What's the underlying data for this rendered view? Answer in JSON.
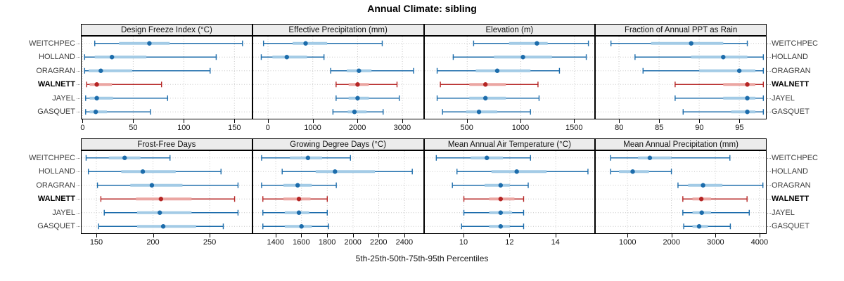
{
  "title": "Annual Climate: sibling",
  "caption": "5th-25th-50th-75th-95th Percentiles",
  "percentile_labels": [
    "5th",
    "25th",
    "50th",
    "75th",
    "95th"
  ],
  "stations": [
    {
      "name": "WEITCHPEC",
      "highlight": false
    },
    {
      "name": "HOLLAND",
      "highlight": false
    },
    {
      "name": "ORAGRAN",
      "highlight": false
    },
    {
      "name": "WALNETT",
      "highlight": true
    },
    {
      "name": "JAYEL",
      "highlight": false
    },
    {
      "name": "GASQUET",
      "highlight": false
    }
  ],
  "colors": {
    "blue": "#1c6cab",
    "blue_band": "#a3cbe6",
    "red": "#b52524",
    "red_band": "#eba6a2",
    "header_bg": "#ececec",
    "grid": "#c8c8c8"
  },
  "chart_data": [
    {
      "type": "dotplot",
      "title": "Design Freeze Index (°C)",
      "xlim": [
        -1,
        167
      ],
      "ticks": [
        0,
        50,
        100,
        150
      ],
      "values": {
        "WEITCHPEC": [
          12,
          36,
          66,
          86,
          158
        ],
        "HOLLAND": [
          2,
          12,
          29,
          63,
          132
        ],
        "ORAGRAN": [
          2,
          6,
          18,
          49,
          126
        ],
        "WALNETT": [
          4,
          7,
          14,
          29,
          78
        ],
        "JAYEL": [
          3,
          7,
          14,
          30,
          84
        ],
        "GASQUET": [
          3,
          7,
          13,
          24,
          67
        ]
      }
    },
    {
      "type": "dotplot",
      "title": "Effective Precipitation (mm)",
      "xlim": [
        -330,
        3465
      ],
      "ticks": [
        0,
        1000,
        2000,
        3000
      ],
      "values": {
        "WEITCHPEC": [
          -100,
          550,
          840,
          1320,
          2550
        ],
        "HOLLAND": [
          -150,
          100,
          420,
          870,
          1250
        ],
        "ORAGRAN": [
          1400,
          1760,
          2030,
          2310,
          3250
        ],
        "WALNETT": [
          1520,
          1800,
          2000,
          2250,
          2880
        ],
        "JAYEL": [
          1520,
          1800,
          2000,
          2250,
          2930
        ],
        "GASQUET": [
          1450,
          1780,
          1930,
          2200,
          2570
        ]
      }
    },
    {
      "type": "dotplot",
      "title": "Elevation (m)",
      "xlim": [
        105,
        1690
      ],
      "ticks": [
        500,
        1000,
        1500
      ],
      "values": {
        "WEITCHPEC": [
          560,
          890,
          1150,
          1250,
          1630
        ],
        "HOLLAND": [
          370,
          750,
          1020,
          1290,
          1610
        ],
        "ORAGRAN": [
          220,
          580,
          780,
          1090,
          1360
        ],
        "WALNETT": [
          250,
          520,
          670,
          860,
          1160
        ],
        "JAYEL": [
          220,
          520,
          670,
          860,
          1170
        ],
        "GASQUET": [
          270,
          490,
          610,
          780,
          1090
        ]
      }
    },
    {
      "type": "dotplot",
      "title": "Fraction of Annual PPT as Rain",
      "xlim": [
        77.1,
        98.3
      ],
      "ticks": [
        80,
        85,
        90,
        95
      ],
      "values": {
        "WEITCHPEC": [
          79,
          84,
          89,
          93,
          96
        ],
        "HOLLAND": [
          82,
          89,
          93,
          96,
          98
        ],
        "ORAGRAN": [
          83,
          90,
          95,
          97,
          98
        ],
        "WALNETT": [
          87,
          93,
          96,
          97,
          98
        ],
        "JAYEL": [
          87,
          93,
          96,
          97,
          98
        ],
        "GASQUET": [
          88,
          94,
          96,
          97,
          98
        ]
      }
    },
    {
      "type": "dotplot",
      "title": "Frost-Free Days",
      "xlim": [
        137,
        287
      ],
      "ticks": [
        150,
        200,
        250
      ],
      "values": {
        "WEITCHPEC": [
          141,
          161,
          175,
          189,
          215
        ],
        "HOLLAND": [
          143,
          172,
          191,
          220,
          260
        ],
        "ORAGRAN": [
          151,
          180,
          199,
          226,
          275
        ],
        "WALNETT": [
          154,
          185,
          207,
          234,
          272
        ],
        "JAYEL": [
          157,
          186,
          206,
          234,
          275
        ],
        "GASQUET": [
          152,
          186,
          209,
          238,
          262
        ]
      }
    },
    {
      "type": "dotplot",
      "title": "Growing Degree Days (°C)",
      "xlim": [
        1225,
        2545
      ],
      "ticks": [
        1400,
        1600,
        1800,
        2000,
        2200,
        2400
      ],
      "values": {
        "WEITCHPEC": [
          1290,
          1510,
          1650,
          1760,
          1980
        ],
        "HOLLAND": [
          1450,
          1710,
          1860,
          2170,
          2460
        ],
        "ORAGRAN": [
          1290,
          1460,
          1570,
          1680,
          1870
        ],
        "WALNETT": [
          1300,
          1460,
          1580,
          1670,
          1800
        ],
        "JAYEL": [
          1300,
          1470,
          1580,
          1660,
          1800
        ],
        "GASQUET": [
          1300,
          1470,
          1600,
          1680,
          1810
        ]
      }
    },
    {
      "type": "dotplot",
      "title": "Mean Annual Air Temperature (°C)",
      "xlim": [
        8.3,
        15.7
      ],
      "ticks": [
        10,
        12,
        14
      ],
      "values": {
        "WEITCHPEC": [
          8.8,
          10.3,
          11.0,
          11.7,
          12.9
        ],
        "HOLLAND": [
          9.7,
          11.2,
          12.3,
          13.6,
          15.4
        ],
        "ORAGRAN": [
          9.5,
          10.9,
          11.6,
          12.0,
          12.8
        ],
        "WALNETT": [
          10.0,
          11.1,
          11.6,
          12.2,
          12.6
        ],
        "JAYEL": [
          10.0,
          11.1,
          11.6,
          12.1,
          12.6
        ],
        "GASQUET": [
          9.9,
          11.1,
          11.6,
          12.0,
          12.6
        ]
      }
    },
    {
      "type": "dotplot",
      "title": "Mean Annual Precipitation (mm)",
      "xlim": [
        280,
        4145
      ],
      "ticks": [
        1000,
        2000,
        3000,
        4000
      ],
      "values": {
        "WEITCHPEC": [
          620,
          1240,
          1510,
          2000,
          3330
        ],
        "HOLLAND": [
          620,
          810,
          1120,
          1490,
          2000
        ],
        "ORAGRAN": [
          2150,
          2380,
          2720,
          3160,
          4080
        ],
        "WALNETT": [
          2260,
          2480,
          2680,
          2900,
          3720
        ],
        "JAYEL": [
          2260,
          2480,
          2690,
          2900,
          3770
        ],
        "GASQUET": [
          2280,
          2480,
          2630,
          2830,
          3340
        ]
      }
    }
  ]
}
